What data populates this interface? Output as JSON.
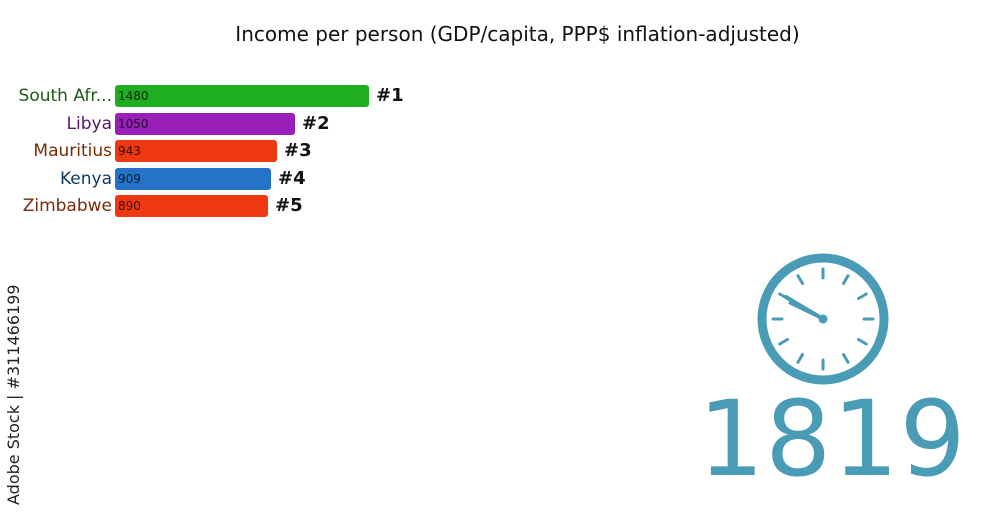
{
  "chart_data": {
    "type": "bar",
    "orientation": "horizontal",
    "title": "Income per person (GDP/capita, PPP$ inflation-adjusted)",
    "categories": [
      "South Afr...",
      "Libya",
      "Mauritius",
      "Kenya",
      "Zimbabwe"
    ],
    "values": [
      1480,
      1050,
      943,
      909,
      890
    ],
    "ranks": [
      "#1",
      "#2",
      "#3",
      "#4",
      "#5"
    ],
    "colors": [
      "#1fae1f",
      "#9a1fb8",
      "#ee3812",
      "#2473c8",
      "#ee3812"
    ],
    "label_colors": [
      "#1a5d12",
      "#5a1470",
      "#7a2a05",
      "#0b3b66",
      "#7a2a05"
    ],
    "xlim": [
      0,
      1480
    ],
    "grid": false
  },
  "year": "1819",
  "clock_icon": "clock-icon",
  "clock_color": "#4a9bb5",
  "credit": "Adobe Stock | #311466199"
}
